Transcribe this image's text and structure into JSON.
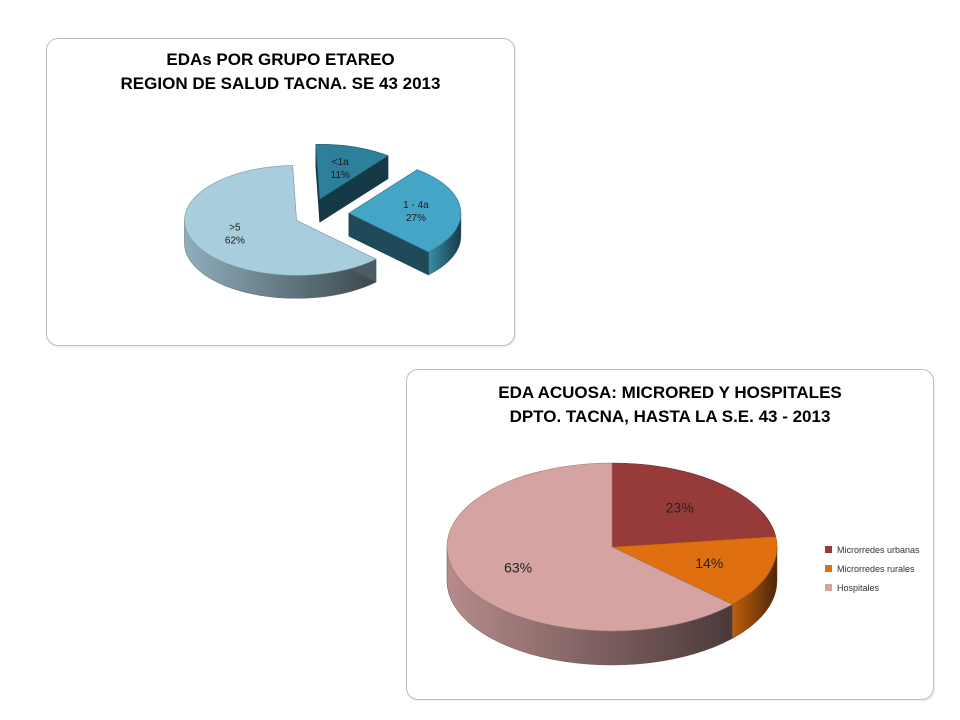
{
  "chart_data": [
    {
      "type": "pie",
      "title_lines": [
        "EDAs POR GRUPO ETAREO",
        "REGION DE SALUD TACNA.  SE   43 2013"
      ],
      "slices": [
        {
          "label": "<1a",
          "value": 11,
          "display": "11%",
          "color": "#2e7f9a"
        },
        {
          "label": "1 - 4a",
          "value": 27,
          "display": "27%",
          "color": "#45a5c7"
        },
        {
          "label": ">5",
          "value": 62,
          "display": "62%",
          "color": "#a8cddd"
        }
      ],
      "exploded": true,
      "legend": "none"
    },
    {
      "type": "pie",
      "title_lines": [
        "EDA ACUOSA: MICRORED Y HOSPITALES",
        "DPTO. TACNA, HASTA LA S.E.  43 - 2013"
      ],
      "slices": [
        {
          "label": "Microrredes urbanas",
          "value": 23,
          "display": "23%",
          "color": "#963a3a"
        },
        {
          "label": "Microrredes rurales",
          "value": 14,
          "display": "14%",
          "color": "#e0700f"
        },
        {
          "label": "Hospitales",
          "value": 63,
          "display": "63%",
          "color": "#d6a3a3"
        }
      ],
      "exploded": false,
      "legend": "right"
    }
  ]
}
